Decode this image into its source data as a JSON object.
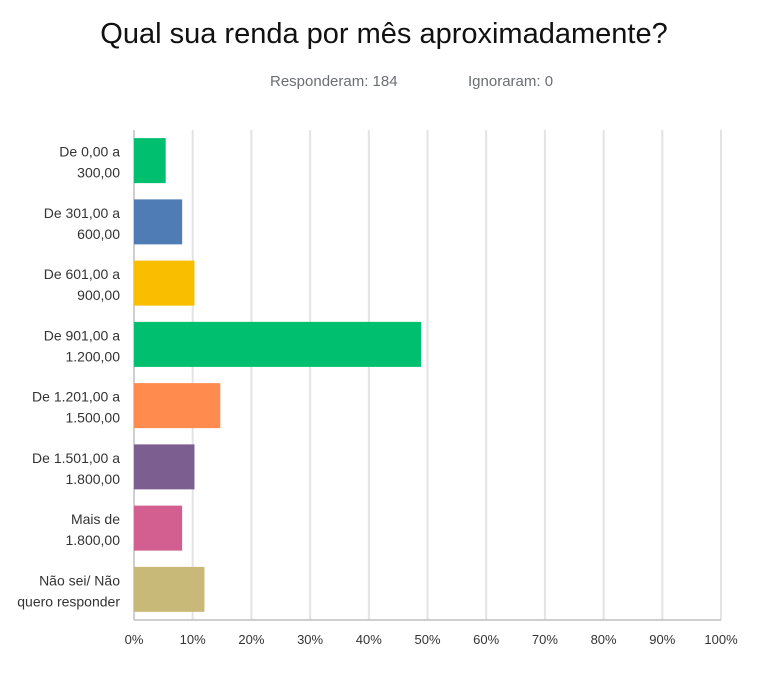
{
  "header": {
    "title": "Qual sua renda por mês aproximadamente?",
    "answered": "Responderam: 184",
    "skipped": "Ignoraram: 0"
  },
  "chart_data": {
    "type": "bar",
    "orientation": "horizontal",
    "categories": [
      [
        "De 0,00 a",
        "300,00"
      ],
      [
        "De 301,00 a",
        "600,00"
      ],
      [
        "De 601,00 a",
        "900,00"
      ],
      [
        "De 901,00 a",
        "1.200,00"
      ],
      [
        "De 1.201,00 a",
        "1.500,00"
      ],
      [
        "De 1.501,00 a",
        "1.800,00"
      ],
      [
        "Mais de",
        "1.800,00"
      ],
      [
        "Não sei/ Não",
        "quero responder"
      ]
    ],
    "values": [
      5.4,
      8.2,
      10.3,
      48.9,
      14.7,
      10.3,
      8.2,
      12.0
    ],
    "colors": [
      "#00bf6f",
      "#507cb6",
      "#f9be00",
      "#00bf6f",
      "#ff8b4f",
      "#7d5e90",
      "#d25f90",
      "#c9b979"
    ],
    "xlim": [
      0,
      100
    ],
    "xticks": [
      "0%",
      "10%",
      "20%",
      "30%",
      "40%",
      "50%",
      "60%",
      "70%",
      "80%",
      "90%",
      "100%"
    ],
    "grid": true
  }
}
